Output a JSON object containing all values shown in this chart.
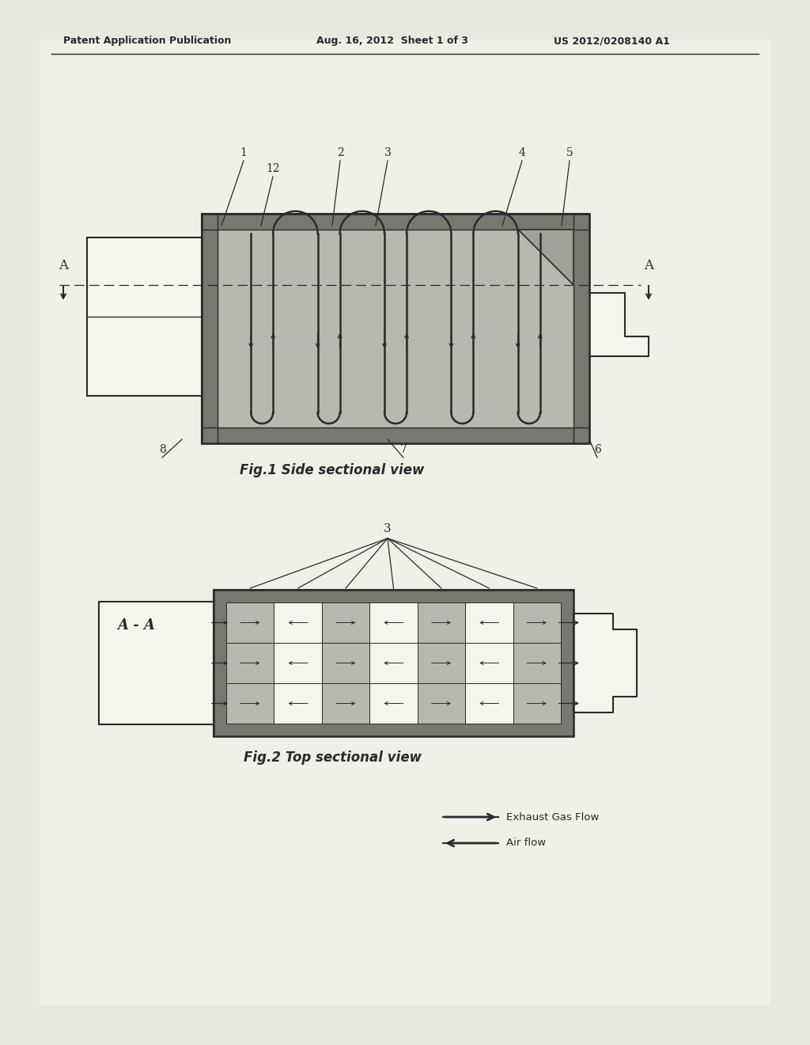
{
  "bg_color": "#e8e8e0",
  "paper_color": "#f0f0e8",
  "header_text_left": "Patent Application Publication",
  "header_text_mid": "Aug. 16, 2012  Sheet 1 of 3",
  "header_text_right": "US 2012/0208140 A1",
  "fig1_title": "Fig.1 Side sectional view",
  "fig2_title": "Fig.2 Top sectional view",
  "legend_exhaust": "Exhaust Gas Flow",
  "legend_air": "Air flow",
  "line_color": "#2a2a2a",
  "fill_color": "#b8b8b0",
  "dark_fill": "#787870",
  "medium_fill": "#a0a098",
  "white_fill": "#f5f5ee",
  "hatch_color": "#888880"
}
